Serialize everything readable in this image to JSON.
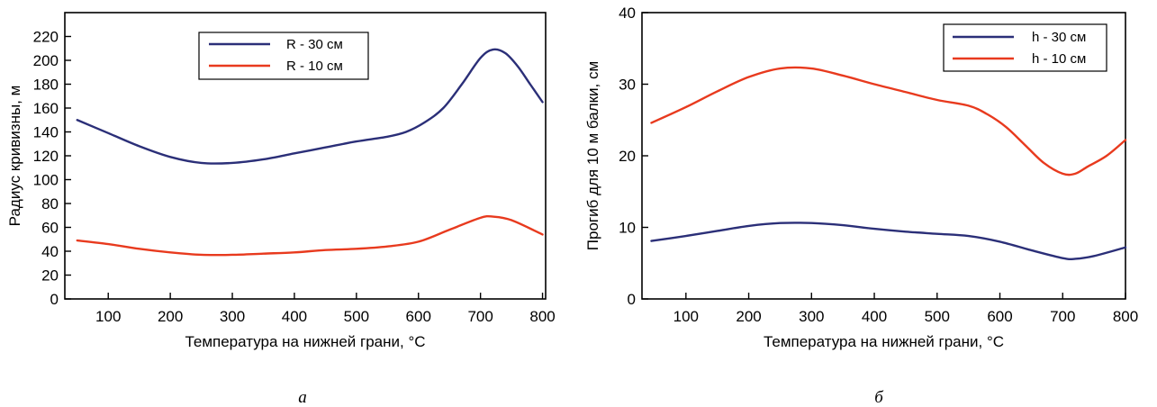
{
  "chart_data": [
    {
      "id": "a",
      "type": "line",
      "caption": "а",
      "xlabel": "Температура на нижней грани, °C",
      "ylabel": "Радиус кривизны, м",
      "xlim": [
        30,
        805
      ],
      "ylim": [
        0,
        240
      ],
      "xticks": [
        100,
        200,
        300,
        400,
        500,
        600,
        700,
        800
      ],
      "yticks": [
        0,
        20,
        40,
        60,
        80,
        100,
        120,
        140,
        160,
        180,
        200,
        220
      ],
      "legend_position": "top-center",
      "grid": false,
      "series": [
        {
          "name": "R - 30 см",
          "color": "#2b2f78",
          "x": [
            50,
            100,
            150,
            200,
            250,
            300,
            350,
            400,
            450,
            500,
            550,
            580,
            610,
            640,
            670,
            700,
            720,
            740,
            760,
            780,
            800
          ],
          "y": [
            150,
            139,
            128,
            119,
            114,
            114,
            117,
            122,
            127,
            132,
            136,
            140,
            148,
            160,
            180,
            202,
            209,
            206,
            195,
            180,
            165
          ]
        },
        {
          "name": "R - 10 см",
          "color": "#e83a1e",
          "x": [
            50,
            100,
            150,
            200,
            250,
            300,
            350,
            400,
            450,
            500,
            550,
            600,
            650,
            700,
            720,
            750,
            800
          ],
          "y": [
            49,
            46,
            42,
            39,
            37,
            37,
            38,
            39,
            41,
            42,
            44,
            48,
            58,
            68,
            69,
            66,
            54
          ]
        }
      ]
    },
    {
      "id": "b",
      "type": "line",
      "caption": "б",
      "xlabel": "Температура на нижней грани, °C",
      "ylabel": "Прогиб для 10 м балки, см",
      "xlim": [
        30,
        800
      ],
      "ylim": [
        0,
        40
      ],
      "xticks": [
        100,
        200,
        300,
        400,
        500,
        600,
        700,
        800
      ],
      "yticks": [
        0,
        10,
        20,
        30,
        40
      ],
      "legend_position": "top-right",
      "grid": false,
      "series": [
        {
          "name": "h - 30 см",
          "color": "#2b2f78",
          "x": [
            45,
            100,
            150,
            200,
            250,
            300,
            350,
            400,
            450,
            500,
            550,
            600,
            650,
            700,
            720,
            750,
            800
          ],
          "y": [
            8.1,
            8.8,
            9.5,
            10.2,
            10.6,
            10.6,
            10.3,
            9.8,
            9.4,
            9.1,
            8.8,
            8.0,
            6.8,
            5.7,
            5.6,
            6.0,
            7.2
          ]
        },
        {
          "name": "h - 10 см",
          "color": "#e83a1e",
          "x": [
            45,
            100,
            150,
            200,
            250,
            300,
            350,
            400,
            450,
            500,
            550,
            580,
            610,
            640,
            670,
            700,
            720,
            740,
            770,
            800
          ],
          "y": [
            24.6,
            26.8,
            29.0,
            31.0,
            32.2,
            32.2,
            31.2,
            30.0,
            28.9,
            27.8,
            27.0,
            25.8,
            24.0,
            21.5,
            19.0,
            17.5,
            17.5,
            18.5,
            20.0,
            22.2
          ]
        }
      ]
    }
  ]
}
